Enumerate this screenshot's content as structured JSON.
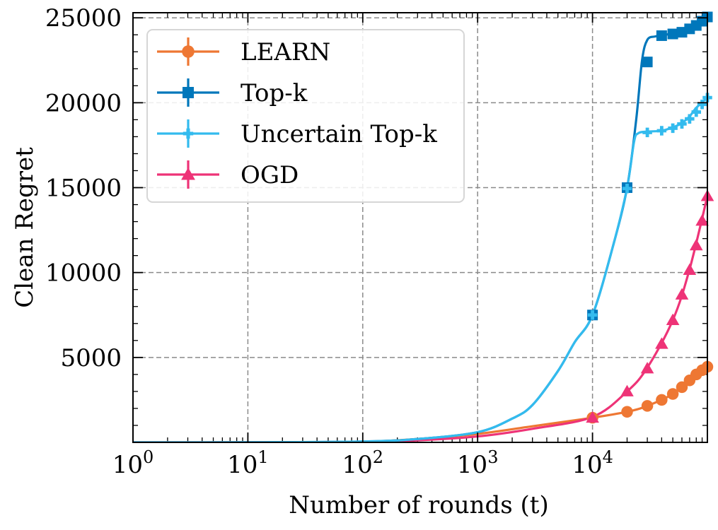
{
  "chart_data": {
    "type": "line",
    "xscale": "log",
    "xlim": [
      1,
      100000
    ],
    "ylim": [
      0,
      25300
    ],
    "xlabel": "Number of rounds (t)",
    "ylabel": "Clean Regret",
    "xticks": [
      {
        "value": 1,
        "label_base": "10",
        "label_exp": "0"
      },
      {
        "value": 10,
        "label_base": "10",
        "label_exp": "1"
      },
      {
        "value": 100,
        "label_base": "10",
        "label_exp": "2"
      },
      {
        "value": 1000,
        "label_base": "10",
        "label_exp": "3"
      },
      {
        "value": 10000,
        "label_base": "10",
        "label_exp": "4"
      }
    ],
    "yticks": [
      {
        "value": 5000,
        "label": "5000"
      },
      {
        "value": 10000,
        "label": "10000"
      },
      {
        "value": 15000,
        "label": "15000"
      },
      {
        "value": 20000,
        "label": "20000"
      },
      {
        "value": 25000,
        "label": "25000"
      }
    ],
    "grid": true,
    "legend_position": "top-left",
    "series": [
      {
        "name": "LEARN",
        "color": "#ee7733",
        "marker": "circle",
        "line": [
          [
            1,
            0
          ],
          [
            10,
            5
          ],
          [
            100,
            40
          ],
          [
            300,
            200
          ],
          [
            1000,
            500
          ],
          [
            3000,
            950
          ],
          [
            10000,
            1450
          ],
          [
            20000,
            1800
          ],
          [
            30000,
            2150
          ],
          [
            50000,
            2850
          ],
          [
            70000,
            3700
          ],
          [
            100000,
            4400
          ]
        ],
        "points": [
          [
            10000,
            1450
          ],
          [
            20000,
            1800
          ],
          [
            30000,
            2150
          ],
          [
            40000,
            2500
          ],
          [
            50000,
            2850
          ],
          [
            60000,
            3250
          ],
          [
            70000,
            3650
          ],
          [
            80000,
            4000
          ],
          [
            90000,
            4250
          ],
          [
            100000,
            4450
          ]
        ]
      },
      {
        "name": "Top-k",
        "color": "#0077bb",
        "marker": "square",
        "line": [
          [
            1,
            0
          ],
          [
            10,
            5
          ],
          [
            100,
            50
          ],
          [
            300,
            200
          ],
          [
            1000,
            600
          ],
          [
            2000,
            1400
          ],
          [
            3000,
            2200
          ],
          [
            5000,
            4200
          ],
          [
            7000,
            5900
          ],
          [
            10000,
            7500
          ],
          [
            15000,
            11500
          ],
          [
            20000,
            15000
          ],
          [
            24000,
            19000
          ],
          [
            27000,
            22500
          ],
          [
            30000,
            23700
          ],
          [
            35000,
            23900
          ],
          [
            40000,
            23950
          ],
          [
            50000,
            24100
          ],
          [
            60000,
            24250
          ],
          [
            70000,
            24450
          ],
          [
            80000,
            24650
          ],
          [
            100000,
            25050
          ]
        ],
        "points": [
          [
            10000,
            7500
          ],
          [
            20000,
            15000
          ],
          [
            30000,
            22400
          ],
          [
            40000,
            23950
          ],
          [
            50000,
            24050
          ],
          [
            60000,
            24150
          ],
          [
            70000,
            24350
          ],
          [
            80000,
            24550
          ],
          [
            90000,
            24800
          ],
          [
            100000,
            25050
          ]
        ]
      },
      {
        "name": "Uncertain Top-k",
        "color": "#33bbee",
        "marker": "plus",
        "line": [
          [
            1,
            0
          ],
          [
            10,
            5
          ],
          [
            100,
            50
          ],
          [
            300,
            200
          ],
          [
            1000,
            600
          ],
          [
            2000,
            1400
          ],
          [
            3000,
            2200
          ],
          [
            5000,
            4200
          ],
          [
            7000,
            5900
          ],
          [
            10000,
            7500
          ],
          [
            15000,
            11500
          ],
          [
            20000,
            15000
          ],
          [
            23000,
            17700
          ],
          [
            25000,
            18200
          ],
          [
            30000,
            18300
          ],
          [
            40000,
            18350
          ],
          [
            50000,
            18550
          ],
          [
            60000,
            18800
          ],
          [
            70000,
            19200
          ],
          [
            80000,
            19700
          ],
          [
            100000,
            20300
          ]
        ],
        "points": [
          [
            10000,
            7500
          ],
          [
            20000,
            14950
          ],
          [
            30000,
            18250
          ],
          [
            40000,
            18350
          ],
          [
            50000,
            18500
          ],
          [
            60000,
            18750
          ],
          [
            70000,
            19050
          ],
          [
            80000,
            19450
          ],
          [
            90000,
            19900
          ],
          [
            100000,
            20300
          ]
        ]
      },
      {
        "name": "OGD",
        "color": "#ee3377",
        "marker": "triangle",
        "line": [
          [
            1,
            0
          ],
          [
            10,
            5
          ],
          [
            100,
            30
          ],
          [
            300,
            120
          ],
          [
            1000,
            350
          ],
          [
            3000,
            800
          ],
          [
            10000,
            1500
          ],
          [
            20000,
            3000
          ],
          [
            30000,
            4400
          ],
          [
            50000,
            7200
          ],
          [
            70000,
            10200
          ],
          [
            100000,
            14500
          ]
        ],
        "points": [
          [
            10000,
            1450
          ],
          [
            20000,
            3000
          ],
          [
            30000,
            4350
          ],
          [
            40000,
            5800
          ],
          [
            50000,
            7200
          ],
          [
            60000,
            8700
          ],
          [
            70000,
            10150
          ],
          [
            80000,
            11600
          ],
          [
            90000,
            13050
          ],
          [
            100000,
            14500
          ]
        ]
      }
    ]
  }
}
